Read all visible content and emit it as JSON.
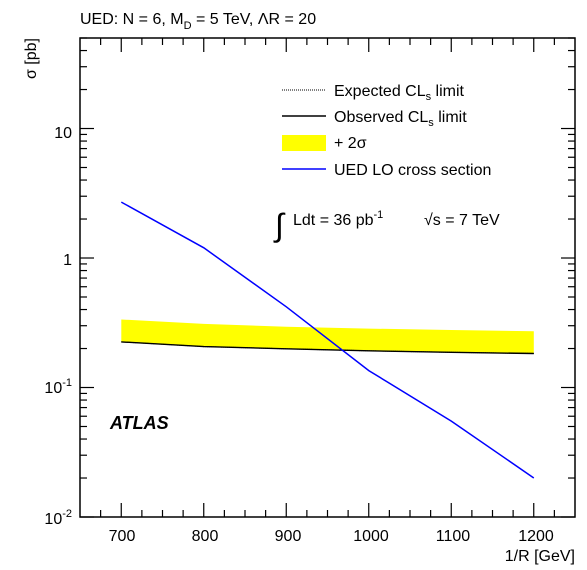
{
  "chart_data": {
    "type": "line",
    "title_parts": {
      "pre": "UED: N = 6, M",
      "sub": "D",
      "mid": " = 5 TeV, ",
      "lambda": "Λ",
      "post": "R = 20"
    },
    "xlabel": "1/R [GeV]",
    "ylabel": "σ [pb]",
    "y_scale": "log",
    "xlim": [
      650,
      1250
    ],
    "ylim": [
      0.01,
      50
    ],
    "x_ticks": [
      "700",
      "800",
      "900",
      "1000",
      "1100",
      "1200"
    ],
    "y_tick_labels": {
      "ten": "10",
      "one": "1",
      "tenth_base": "10",
      "tenth_exp": "-1",
      "hundredth_base": "10",
      "hundredth_exp": "-2"
    },
    "x": [
      700,
      800,
      900,
      1000,
      1100,
      1200
    ],
    "band_plus2sigma": {
      "lower": [
        0.225,
        0.207,
        0.199,
        0.192,
        0.187,
        0.183
      ],
      "upper": [
        0.335,
        0.31,
        0.295,
        0.285,
        0.278,
        0.272
      ]
    },
    "series": [
      {
        "name": "Expected CLs limit",
        "values": [
          0.225,
          0.207,
          0.199,
          0.192,
          0.187,
          0.183
        ],
        "style": "dotted",
        "color": "#000000"
      },
      {
        "name": "Observed CLs limit",
        "values": [
          0.225,
          0.207,
          0.199,
          0.192,
          0.187,
          0.183
        ],
        "style": "solid",
        "color": "#000000"
      },
      {
        "name": "UED LO cross section",
        "values": [
          2.7,
          1.2,
          0.42,
          0.135,
          0.055,
          0.02
        ],
        "style": "solid",
        "color": "#0000ff"
      }
    ],
    "legend": {
      "position": "top-right",
      "expected": {
        "pre": "Expected CL",
        "sub": "s",
        "post": " limit"
      },
      "observed": {
        "pre": "Observed CL",
        "sub": "s",
        "post": " limit"
      },
      "band": "+ 2σ",
      "theory": "UED LO cross section"
    },
    "annotation": {
      "integral": "∫",
      "lumi_pre": "Ldt = 36 pb",
      "lumi_exp": "-1",
      "sqrt": "√",
      "energy": "s = 7 TeV"
    },
    "label": "ATLAS",
    "colors": {
      "band": "#ffff00",
      "theory": "#0000ff",
      "limit": "#000000"
    }
  }
}
